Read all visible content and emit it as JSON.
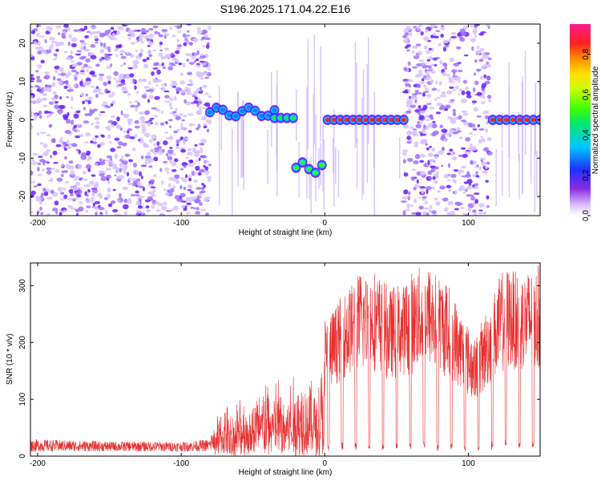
{
  "title": "S196.2025.171.04.22.E16",
  "colors": {
    "snr_line": "#e83030",
    "dot_purple": "#7a2cff",
    "axis": "#000000",
    "background": "#ffffff"
  },
  "chart_data": [
    {
      "type": "heatmap",
      "xlabel": "Height of straight line (km)",
      "ylabel": "Frequency (Hz)",
      "xlim": [
        -205,
        150
      ],
      "ylim": [
        -25,
        25
      ],
      "x_ticks": [
        -200,
        -100,
        0,
        100
      ],
      "y_ticks": [
        -20,
        -10,
        0,
        10,
        20
      ],
      "colorbar": {
        "label": "Normalized spectral amplitude",
        "range": [
          0,
          0.95
        ],
        "ticks": [
          "0.0",
          "0.2",
          "0.4",
          "0.6",
          "0.8"
        ],
        "colormap": "rainbow (white-purple-blue-cyan-green-yellow-red-magenta)"
      },
      "noise_regions_km": [
        [
          -205,
          -80
        ],
        [
          55,
          115
        ]
      ],
      "tracks": [
        {
          "x_start": -80,
          "x_end": -35,
          "freq_hz": 2,
          "amplitude": 0.3
        },
        {
          "x_start": -35,
          "x_end": -22,
          "freq_hz": 0.5,
          "amplitude": 0.5
        },
        {
          "x_start": -20,
          "x_end": -2,
          "freq_hz": -12.5,
          "amplitude": 0.55
        },
        {
          "x_start": 2,
          "x_end": 55,
          "freq_hz": 0,
          "amplitude": 0.9
        },
        {
          "x_start": 117,
          "x_end": 150,
          "freq_hz": 0,
          "amplitude": 0.9
        }
      ]
    },
    {
      "type": "line",
      "xlabel": "Height of straight line (km)",
      "ylabel": "SNR (10 * v/v)",
      "xlim": [
        -205,
        150
      ],
      "ylim": [
        0,
        340
      ],
      "x_ticks": [
        -200,
        -100,
        0,
        100
      ],
      "y_ticks": [
        0,
        100,
        200,
        300
      ],
      "envelope": {
        "x": [
          -205,
          -180,
          -150,
          -120,
          -100,
          -80,
          -75,
          -65,
          -55,
          -45,
          -35,
          -25,
          -15,
          -5,
          0,
          5,
          15,
          25,
          35,
          45,
          55,
          65,
          75,
          85,
          95,
          105,
          115,
          125,
          135,
          150
        ],
        "y": [
          30,
          28,
          26,
          26,
          25,
          30,
          90,
          100,
          120,
          150,
          160,
          150,
          180,
          160,
          240,
          250,
          290,
          320,
          320,
          290,
          300,
          330,
          330,
          300,
          250,
          200,
          270,
          330,
          320,
          330
        ]
      }
    }
  ]
}
